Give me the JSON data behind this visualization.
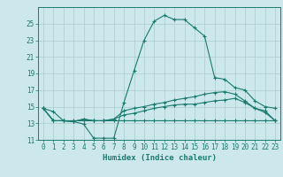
{
  "title": "",
  "xlabel": "Humidex (Indice chaleur)",
  "bg_color": "#cce8ed",
  "grid_color": "#aacccc",
  "line_color": "#1a7a6e",
  "xlim": [
    -0.5,
    23.5
  ],
  "ylim": [
    11,
    27
  ],
  "yticks": [
    11,
    13,
    15,
    17,
    19,
    21,
    23,
    25
  ],
  "xticks": [
    0,
    1,
    2,
    3,
    4,
    5,
    6,
    7,
    8,
    9,
    10,
    11,
    12,
    13,
    14,
    15,
    16,
    17,
    18,
    19,
    20,
    21,
    22,
    23
  ],
  "series": [
    {
      "x": [
        0,
        1,
        2,
        3,
        4,
        5,
        6,
        7,
        8,
        9,
        10,
        11,
        12,
        13,
        14,
        15,
        16,
        17,
        18,
        19,
        20,
        21,
        22,
        23
      ],
      "y": [
        14.8,
        14.4,
        13.3,
        13.2,
        12.9,
        11.2,
        11.2,
        11.2,
        15.5,
        19.3,
        23.0,
        25.3,
        26.0,
        25.5,
        25.5,
        24.5,
        23.5,
        18.5,
        18.3,
        17.3,
        17.0,
        15.7,
        15.0,
        14.8
      ]
    },
    {
      "x": [
        0,
        1,
        2,
        3,
        4,
        5,
        6,
        7,
        8,
        9,
        10,
        11,
        12,
        13,
        14,
        15,
        16,
        17,
        18,
        19,
        20,
        21,
        22,
        23
      ],
      "y": [
        14.8,
        13.3,
        13.3,
        13.2,
        13.5,
        13.3,
        13.3,
        13.5,
        14.5,
        14.8,
        15.0,
        15.3,
        15.5,
        15.8,
        16.0,
        16.2,
        16.5,
        16.7,
        16.8,
        16.5,
        15.7,
        14.8,
        14.5,
        13.3
      ]
    },
    {
      "x": [
        0,
        1,
        2,
        3,
        4,
        5,
        6,
        7,
        8,
        9,
        10,
        11,
        12,
        13,
        14,
        15,
        16,
        17,
        18,
        19,
        20,
        21,
        22,
        23
      ],
      "y": [
        14.8,
        13.3,
        13.3,
        13.2,
        13.5,
        13.3,
        13.3,
        13.5,
        14.0,
        14.2,
        14.5,
        14.8,
        15.0,
        15.2,
        15.3,
        15.3,
        15.5,
        15.7,
        15.8,
        16.0,
        15.5,
        14.8,
        14.3,
        13.3
      ]
    },
    {
      "x": [
        0,
        1,
        2,
        3,
        4,
        5,
        6,
        7,
        8,
        9,
        10,
        11,
        12,
        13,
        14,
        15,
        16,
        17,
        18,
        19,
        20,
        21,
        22,
        23
      ],
      "y": [
        14.8,
        13.3,
        13.3,
        13.3,
        13.3,
        13.3,
        13.3,
        13.3,
        13.3,
        13.3,
        13.3,
        13.3,
        13.3,
        13.3,
        13.3,
        13.3,
        13.3,
        13.3,
        13.3,
        13.3,
        13.3,
        13.3,
        13.3,
        13.3
      ]
    }
  ]
}
